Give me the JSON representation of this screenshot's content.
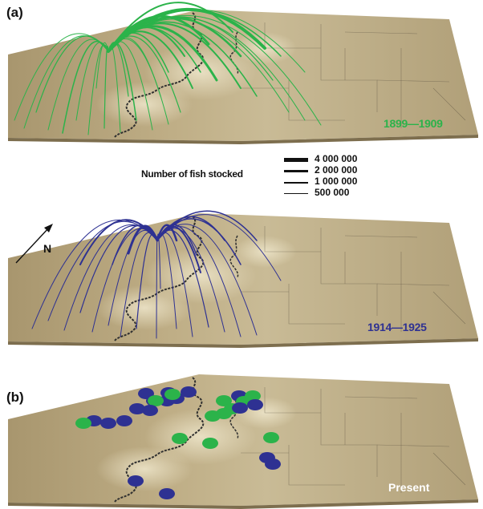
{
  "panels": {
    "a": "(a)",
    "b": "(b)"
  },
  "periods": [
    {
      "label": "1899—1909",
      "color": "#2bb34a"
    },
    {
      "label": "1914—1925",
      "color": "#2e3192"
    }
  ],
  "present": {
    "label": "Present"
  },
  "legend": {
    "title": "Number of fish stocked",
    "items": [
      {
        "label": "4 000 000",
        "value": 4000000
      },
      {
        "label": "2 000 000",
        "value": 2000000
      },
      {
        "label": "1 000 000",
        "value": 1000000
      },
      {
        "label": "500 000",
        "value": 500000
      }
    ]
  },
  "north": {
    "label": "N",
    "icon": "north-arrow-icon"
  },
  "colors": {
    "terrain": "#b5a37c",
    "terrain_light": "#e0d6b4",
    "terrain_dark": "#8f7f5c",
    "river": "#2f2f2f",
    "green": "#2bb34a",
    "blue": "#2e3192"
  }
}
